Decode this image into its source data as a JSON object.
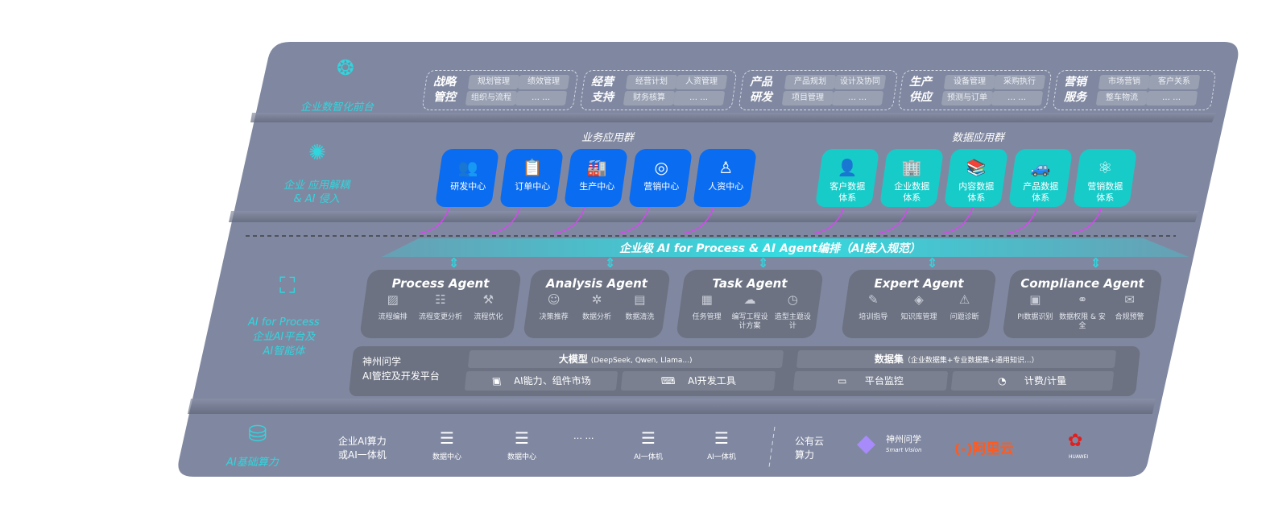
{
  "layers": {
    "frontend": {
      "label": "企业数智化前台",
      "icon": "brain-icon",
      "groups": [
        {
          "title": [
            "战略",
            "管控"
          ],
          "items": [
            "规划管理",
            "绩效管理",
            "组织与流程",
            "… …"
          ]
        },
        {
          "title": [
            "经营",
            "支持"
          ],
          "items": [
            "经营计划",
            "人资管理",
            "财务核算",
            "… …"
          ]
        },
        {
          "title": [
            "产品",
            "研发"
          ],
          "items": [
            "产品规划",
            "设计及协同",
            "项目管理",
            "… …"
          ]
        },
        {
          "title": [
            "生产",
            "供应"
          ],
          "items": [
            "设备管理",
            "采购执行",
            "预测与订单",
            "… …"
          ]
        },
        {
          "title": [
            "营销",
            "服务"
          ],
          "items": [
            "市场营销",
            "客户关系",
            "整车物流",
            "… …"
          ]
        }
      ]
    },
    "apps": {
      "label": [
        "企业 应用解耦",
        "& AI 侵入"
      ],
      "icon": "molecule-icon",
      "business_title": "业务应用群",
      "business": [
        {
          "label": "研发中心",
          "icon": "team-icon"
        },
        {
          "label": "订单中心",
          "icon": "clipboard-icon"
        },
        {
          "label": "生产中心",
          "icon": "factory-icon"
        },
        {
          "label": "营销中心",
          "icon": "target-icon"
        },
        {
          "label": "人资中心",
          "icon": "person-icon"
        }
      ],
      "data_title": "数据应用群",
      "data": [
        {
          "label": [
            "客户数据",
            "体系"
          ],
          "icon": "user-icon"
        },
        {
          "label": [
            "企业数据",
            "体系"
          ],
          "icon": "building-icon"
        },
        {
          "label": [
            "内容数据",
            "体系"
          ],
          "icon": "books-icon"
        },
        {
          "label": [
            "产品数据",
            "体系"
          ],
          "icon": "car-icon"
        },
        {
          "label": [
            "营销数据",
            "体系"
          ],
          "icon": "atom-icon"
        }
      ]
    },
    "ai": {
      "label": [
        "AI for Process",
        "企业AI平台及",
        "AI智能体"
      ],
      "icon": "face-scan-icon",
      "banner": "企业级 AI for Process & AI Agent编排（AI接入规范）",
      "agents": [
        {
          "name": "Process Agent",
          "items": [
            "流程编排",
            "流程变更分析",
            "流程优化"
          ]
        },
        {
          "name": "Analysis Agent",
          "items": [
            "决策推荐",
            "数据分析",
            "数据清洗"
          ]
        },
        {
          "name": "Task Agent",
          "items": [
            "任务管理",
            "编写工程设计方案",
            "造型主题设计"
          ]
        },
        {
          "name": "Expert Agent",
          "items": [
            "培训指导",
            "知识库管理",
            "问题诊断"
          ]
        },
        {
          "name": "Compliance Agent",
          "items": [
            "PI数据识别",
            "数据权限 & 安全",
            "合规预警"
          ]
        }
      ],
      "platform": {
        "title": [
          "神州问学",
          "AI管控及开发平台"
        ],
        "model": "大模型",
        "model_note": "(DeepSeek, Qwen, Llama...)",
        "dataset": "数据集",
        "dataset_note": "（企业数据集+专业数据集+通用知识...）",
        "tools": [
          "AI能力、组件市场",
          "AI开发工具",
          "平台监控",
          "计费/计量"
        ]
      }
    },
    "infra": {
      "label": "AI基础算力",
      "icon": "database-icon",
      "private_label": [
        "企业AI算力",
        "或AI一体机"
      ],
      "servers": [
        "数据中心",
        "数据中心",
        "AI一体机",
        "AI一体机"
      ],
      "ellipsis": "… …",
      "public_label": [
        "公有云",
        "算力"
      ],
      "vendors": [
        {
          "name": "神州问学",
          "sub": "Smart Vision"
        },
        {
          "name": "阿里云"
        },
        {
          "name": "HUAWEI"
        }
      ]
    }
  },
  "colors": {
    "panel": "#8088a1",
    "cyan": "#2fd6de",
    "blue": "#0a6cf0",
    "teal": "#17cbc9",
    "agent": "#6c7282",
    "arrow": "#e040fb",
    "aliyun": "#ff5a1f",
    "huawei": "#e02020"
  }
}
